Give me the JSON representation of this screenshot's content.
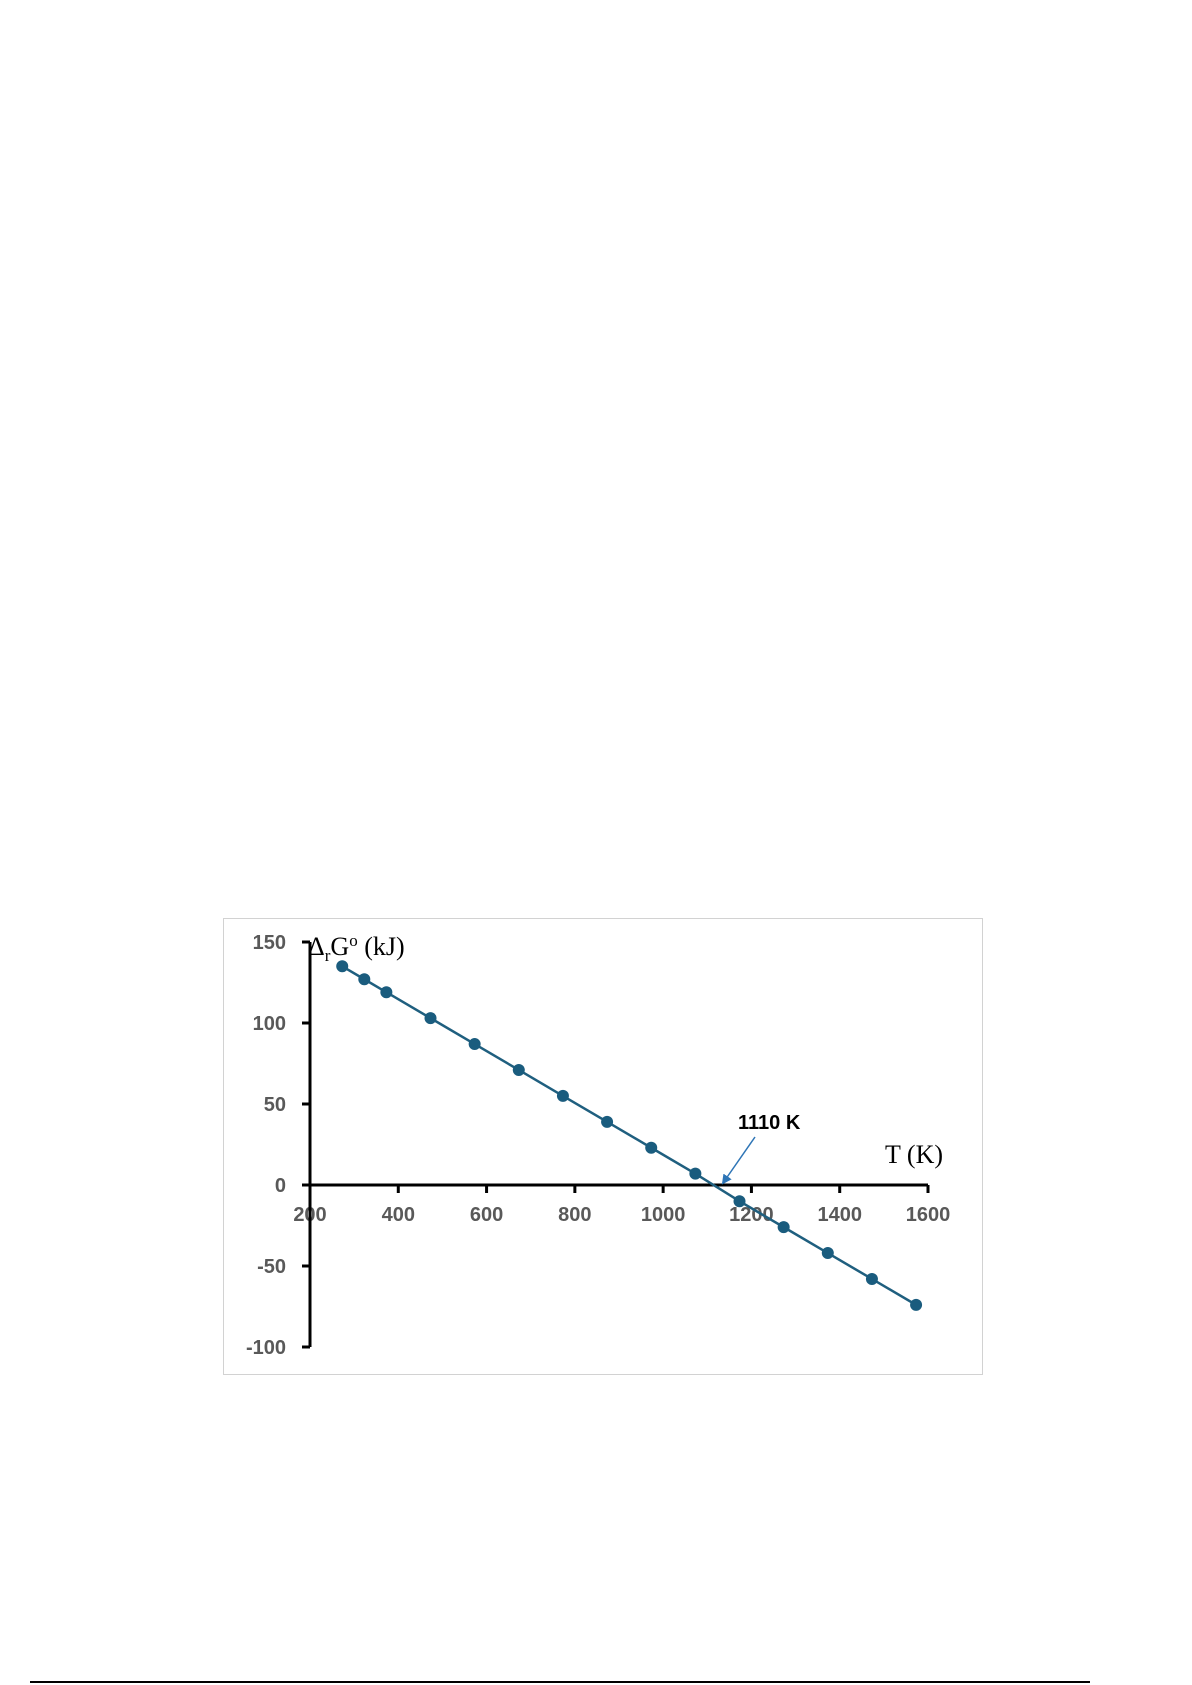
{
  "chart_data": {
    "type": "line",
    "title": "",
    "ylabel": {
      "prefix": "Δ",
      "sub": "r",
      "main": "G",
      "sup": "o",
      "suffix": " (kJ)"
    },
    "xlabel": "T (K)",
    "xlim": [
      200,
      1600
    ],
    "ylim": [
      -100,
      150
    ],
    "x_ticks": [
      200,
      400,
      600,
      800,
      1000,
      1200,
      1400,
      1600
    ],
    "y_ticks": [
      -100,
      -50,
      0,
      50,
      100,
      150
    ],
    "grid": false,
    "legend": "none",
    "line_color": "#1f5f7f",
    "marker_color": "#1a5c7e",
    "series": [
      {
        "x": [
          273,
          323,
          373,
          473,
          573,
          673,
          773,
          873,
          973,
          1073,
          1173,
          1273,
          1373,
          1473,
          1573
        ],
        "y": [
          135,
          127,
          119,
          103,
          87,
          71,
          55,
          39,
          23,
          7,
          -10,
          -26,
          -42,
          -58,
          -74
        ]
      }
    ],
    "annotation": {
      "text": "1110 K",
      "x": 1110,
      "y": 0
    }
  }
}
